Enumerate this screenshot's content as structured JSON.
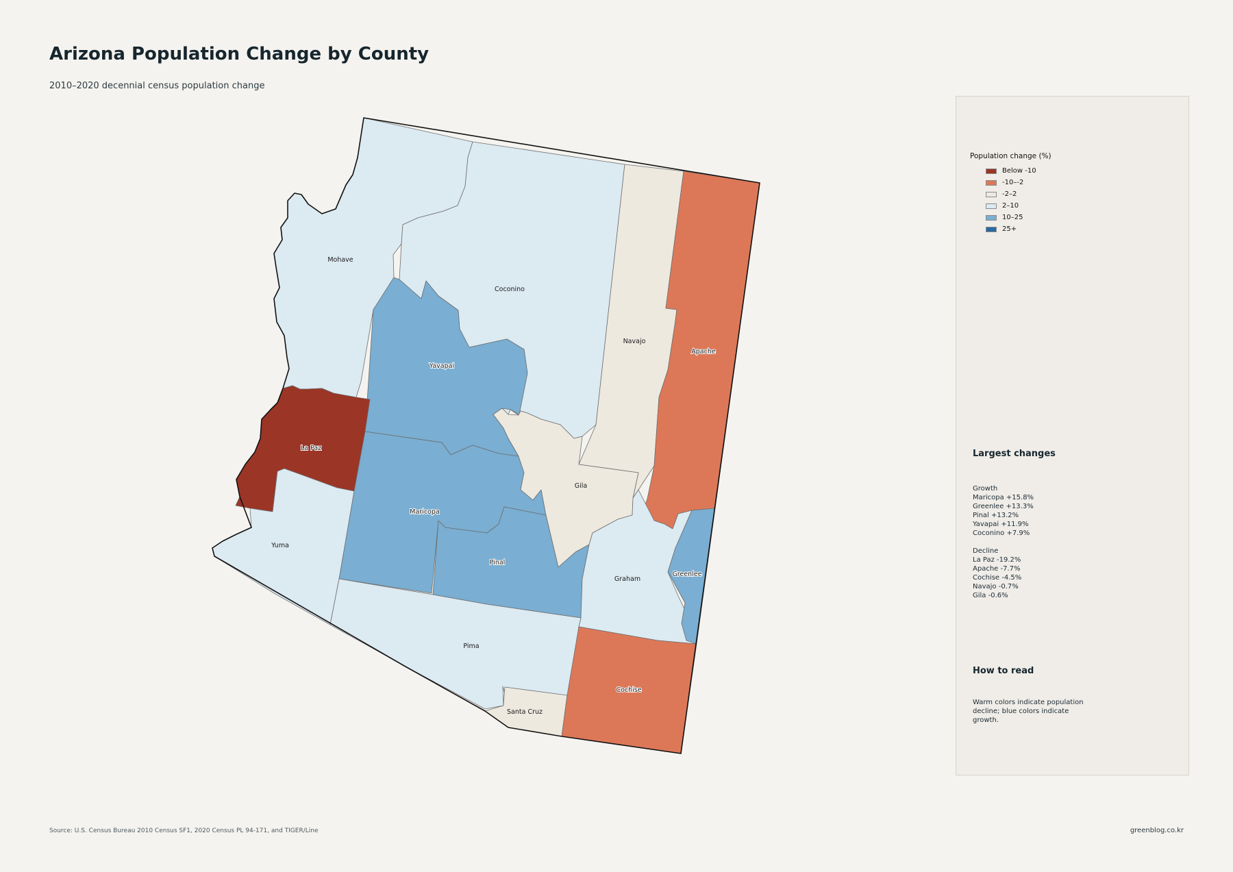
{
  "title": "Arizona Population Change by County",
  "subtitle": "2010–2020 decennial census population change",
  "legend": {
    "title": "Population change (%)",
    "items": [
      {
        "label": "Below -10",
        "color": "#9b3526"
      },
      {
        "label": "-10–-2",
        "color": "#dc7858"
      },
      {
        "label": "-2–2",
        "color": "#ede9df"
      },
      {
        "label": "2–10",
        "color": "#dceaf2"
      },
      {
        "label": "10–25",
        "color": "#7aaed2"
      },
      {
        "label": "25+",
        "color": "#2b6aa1"
      }
    ]
  },
  "counties": [
    {
      "name": "Mohave",
      "change_pct": null,
      "category": "2–10"
    },
    {
      "name": "Coconino",
      "change_pct": 7.9,
      "category": "2–10"
    },
    {
      "name": "Navajo",
      "change_pct": -0.7,
      "category": "-2–2"
    },
    {
      "name": "Apache",
      "change_pct": -7.7,
      "category": "-10–-2"
    },
    {
      "name": "Yavapai",
      "change_pct": 11.9,
      "category": "10–25"
    },
    {
      "name": "La Paz",
      "change_pct": -19.2,
      "category": "Below -10"
    },
    {
      "name": "Maricopa",
      "change_pct": 15.8,
      "category": "10–25"
    },
    {
      "name": "Gila",
      "change_pct": -0.6,
      "category": "-2–2"
    },
    {
      "name": "Yuma",
      "change_pct": null,
      "category": "2–10"
    },
    {
      "name": "Pinal",
      "change_pct": 13.2,
      "category": "10–25"
    },
    {
      "name": "Graham",
      "change_pct": null,
      "category": "2–10"
    },
    {
      "name": "Greenlee",
      "change_pct": 13.3,
      "category": "10–25"
    },
    {
      "name": "Pima",
      "change_pct": null,
      "category": "2–10"
    },
    {
      "name": "Santa Cruz",
      "change_pct": null,
      "category": "-2–2"
    },
    {
      "name": "Cochise",
      "change_pct": -4.5,
      "category": "-10–-2"
    }
  ],
  "largest_changes": {
    "heading": "Largest changes",
    "growth": {
      "label": "Growth",
      "items": [
        "Maricopa  +15.8%",
        "Greenlee  +13.3%",
        "Pinal  +13.2%",
        "Yavapai  +11.9%",
        "Coconino  +7.9%"
      ]
    },
    "decline": {
      "label": "Decline",
      "items": [
        "La Paz  -19.2%",
        "Apache  -7.7%",
        "Cochise  -4.5%",
        "Navajo  -0.7%",
        "Gila  -0.6%"
      ]
    }
  },
  "how_to_read": {
    "heading": "How to read",
    "text": "Warm colors indicate population decline; blue colors indicate growth."
  },
  "source": "Source: U.S. Census Bureau 2010 Census SF1, 2020 Census PL 94-171, and TIGER/Line",
  "credit": "greenblog.co.kr"
}
